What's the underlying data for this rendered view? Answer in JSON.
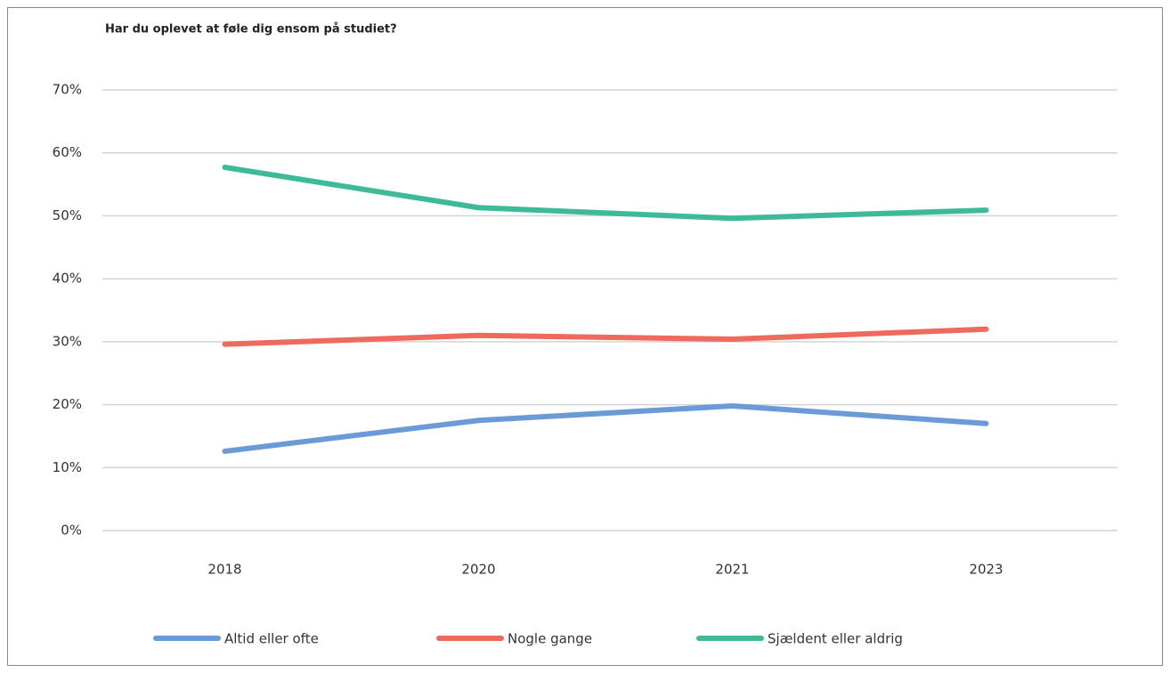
{
  "chart_data": {
    "type": "line",
    "title": "Har du oplevet at føle dig ensom på studiet?",
    "categories": [
      "2018",
      "2020",
      "2021",
      "2023"
    ],
    "series": [
      {
        "name": "Altid eller ofte",
        "color": "#6a9bd6",
        "values": [
          12.6,
          17.5,
          19.8,
          17.0
        ]
      },
      {
        "name": "Nogle gange",
        "color": "#ee6a5c",
        "values": [
          29.6,
          31.0,
          30.4,
          32.0
        ]
      },
      {
        "name": "Sjældent eller aldrig",
        "color": "#3dbb98",
        "values": [
          57.7,
          51.3,
          49.6,
          50.9
        ]
      }
    ],
    "ylim": [
      0,
      70
    ],
    "yticks": [
      {
        "value": 0,
        "label": "0%"
      },
      {
        "value": 10,
        "label": "10%"
      },
      {
        "value": 20,
        "label": "20%"
      },
      {
        "value": 30,
        "label": "30%"
      },
      {
        "value": 40,
        "label": "40%"
      },
      {
        "value": 50,
        "label": "50%"
      },
      {
        "value": 60,
        "label": "60%"
      },
      {
        "value": 70,
        "label": "70%"
      }
    ],
    "grid": true,
    "legend": "bottom"
  }
}
